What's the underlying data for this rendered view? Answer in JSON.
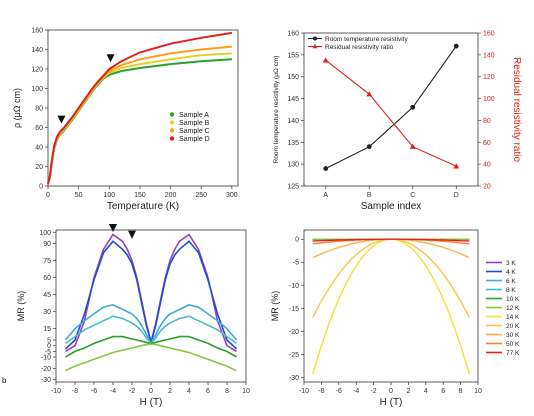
{
  "chart_data": [
    {
      "type": "line",
      "panel": "top-left",
      "xlabel": "Temperature (K)",
      "ylabel": "ρ (μΩ cm)",
      "xlim": [
        0,
        310
      ],
      "ylim": [
        0,
        160
      ],
      "xticks": [
        0,
        50,
        100,
        150,
        200,
        250,
        300
      ],
      "yticks": [
        0,
        20,
        40,
        60,
        80,
        100,
        120,
        140,
        160
      ],
      "legend_position": "right-center",
      "colors": {
        "Sample A": "#2ca02c",
        "Sample B": "#e6d12a",
        "Sample C": "#ff9f1a",
        "Sample D": "#e02020"
      },
      "x": [
        0,
        3,
        6,
        10,
        15,
        20,
        25,
        30,
        40,
        50,
        60,
        70,
        80,
        90,
        100,
        120,
        150,
        200,
        250,
        300
      ],
      "series": [
        {
          "name": "Sample A",
          "values": [
            2,
            8,
            22,
            38,
            48,
            53,
            56,
            60,
            68,
            77,
            86,
            95,
            103,
            110,
            114,
            118,
            121,
            125,
            128,
            130
          ]
        },
        {
          "name": "Sample B",
          "values": [
            2,
            9,
            23,
            39,
            49,
            54,
            57,
            61,
            69,
            78,
            87,
            96,
            104,
            111,
            116,
            121,
            125,
            130,
            134,
            136
          ]
        },
        {
          "name": "Sample C",
          "values": [
            2,
            9,
            24,
            40,
            50,
            55,
            58,
            62,
            70,
            79,
            88,
            97,
            105,
            112,
            118,
            124,
            130,
            136,
            140,
            143
          ]
        },
        {
          "name": "Sample D",
          "values": [
            2,
            10,
            25,
            41,
            51,
            56,
            59,
            63,
            71,
            80,
            89,
            98,
            106,
            113,
            120,
            128,
            137,
            146,
            152,
            157
          ]
        }
      ],
      "markers": [
        {
          "x": 22,
          "y": 66
        },
        {
          "x": 102,
          "y": 129
        }
      ]
    },
    {
      "type": "line",
      "panel": "top-right",
      "xlabel": "Sample index",
      "ylabel": "Room temperature resistivity (μΩ cm)",
      "y2label": "Residual resistivity ratio",
      "categories": [
        "A",
        "B",
        "C",
        "D"
      ],
      "ylim": [
        125,
        160
      ],
      "yticks": [
        125,
        130,
        135,
        140,
        145,
        150,
        155,
        160
      ],
      "y2lim": [
        20,
        160
      ],
      "y2ticks": [
        20,
        40,
        60,
        80,
        100,
        120,
        140,
        160
      ],
      "legend_position": "top-left",
      "series": [
        {
          "name": "Room temperature resistivity",
          "axis": "left",
          "color": "#222222",
          "marker": "circle",
          "values": [
            129,
            134,
            143,
            157
          ]
        },
        {
          "name": "Residual resistivity ratio",
          "axis": "right",
          "color": "#e02020",
          "marker": "triangle",
          "values": [
            135,
            104,
            56,
            38
          ]
        }
      ]
    },
    {
      "type": "line",
      "panel": "bottom-left",
      "xlabel": "H (T)",
      "ylabel": "MR (%)",
      "xlim": [
        -10,
        10
      ],
      "ylim": [
        -32,
        102
      ],
      "xticks": [
        -10,
        -8,
        -6,
        -4,
        -2,
        0,
        2,
        4,
        6,
        8,
        10
      ],
      "yticks": [
        -30,
        -20,
        -10,
        -5,
        0,
        5,
        15,
        30,
        45,
        60,
        75,
        90,
        100
      ],
      "x": [
        -9,
        -8,
        -7,
        -6,
        -5,
        -4,
        -3,
        -2.5,
        -2,
        -1.5,
        -1,
        -0.5,
        0,
        0.5,
        1,
        1.5,
        2,
        2.5,
        3,
        4,
        5,
        6,
        7,
        8,
        9
      ],
      "series": [
        {
          "color": "#9a3fc0",
          "values": [
            -5,
            0,
            22,
            60,
            85,
            98,
            92,
            85,
            75,
            60,
            40,
            20,
            3,
            20,
            40,
            60,
            75,
            85,
            92,
            98,
            85,
            60,
            22,
            0,
            -5
          ]
        },
        {
          "color": "#1f4fd0",
          "values": [
            -3,
            5,
            28,
            58,
            82,
            92,
            85,
            80,
            72,
            58,
            38,
            18,
            3,
            18,
            38,
            58,
            72,
            80,
            85,
            92,
            82,
            58,
            28,
            5,
            -3
          ]
        },
        {
          "color": "#3aaad8",
          "values": [
            5,
            15,
            22,
            28,
            34,
            36,
            32,
            30,
            28,
            24,
            18,
            10,
            2,
            10,
            18,
            24,
            28,
            30,
            32,
            36,
            34,
            28,
            22,
            15,
            5
          ]
        },
        {
          "color": "#45c0c0",
          "values": [
            2,
            8,
            14,
            18,
            22,
            26,
            24,
            22,
            20,
            17,
            13,
            7,
            2,
            7,
            13,
            17,
            20,
            22,
            24,
            26,
            22,
            18,
            14,
            8,
            2
          ]
        },
        {
          "color": "#2ca02c",
          "values": [
            -10,
            -5,
            -2,
            2,
            5,
            8,
            8,
            7,
            6,
            5,
            4,
            3,
            2,
            3,
            4,
            5,
            6,
            7,
            8,
            8,
            5,
            2,
            -2,
            -5,
            -10
          ]
        },
        {
          "color": "#8bc34a",
          "values": [
            -22,
            -18,
            -15,
            -12,
            -9,
            -6,
            -4,
            -3,
            -2,
            -1,
            0,
            1,
            1.5,
            1,
            0,
            -1,
            -2,
            -3,
            -4,
            -6,
            -9,
            -12,
            -15,
            -18,
            -22
          ]
        }
      ],
      "markers": [
        {
          "x": -4,
          "y": 102
        },
        {
          "x": -2,
          "y": 96
        }
      ]
    },
    {
      "type": "line",
      "panel": "bottom-right",
      "xlabel": "H (T)",
      "ylabel": "MR (%)",
      "xlim": [
        -10,
        10
      ],
      "ylim": [
        -31,
        2
      ],
      "xticks": [
        -10,
        -8,
        -6,
        -4,
        -2,
        0,
        2,
        4,
        6,
        8,
        10
      ],
      "yticks": [
        -30,
        -25,
        -20,
        -15,
        -10,
        -5,
        0
      ],
      "legend_position": "outside-right",
      "series": [
        {
          "name": "3 K",
          "color": "#9a3fc0",
          "a": 0.0
        },
        {
          "name": "4 K",
          "color": "#1f4fd0",
          "a": 0.0
        },
        {
          "name": "6 K",
          "color": "#3aaad8",
          "a": 0.0
        },
        {
          "name": "8 K",
          "color": "#45c0c0",
          "a": 0.0
        },
        {
          "name": "10 K",
          "color": "#2ca02c",
          "a": 0.0
        },
        {
          "name": "12 K",
          "color": "#8bc34a",
          "a": 0.0
        },
        {
          "name": "14 K",
          "color": "#f3e03a",
          "a": -0.3612
        },
        {
          "name": "20 K",
          "color": "#f7c64a",
          "a": -0.2099
        },
        {
          "name": "30 K",
          "color": "#ffb450",
          "a": -0.0494
        },
        {
          "name": "50 K",
          "color": "#ff7f2a",
          "a": -0.0123
        },
        {
          "name": "77 K",
          "color": "#e02020",
          "a": -0.0049
        }
      ]
    }
  ],
  "panel_letter": "b"
}
